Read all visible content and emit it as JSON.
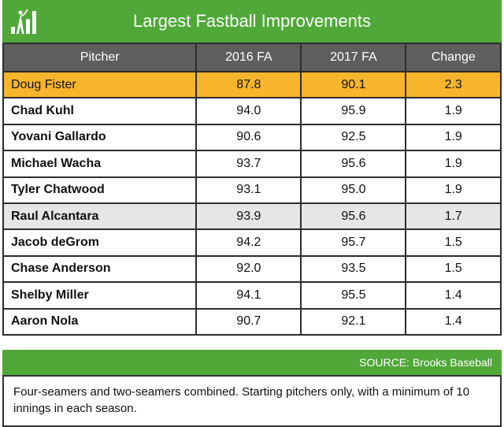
{
  "title": "Largest Fastball Improvements",
  "logo_icon": "batter-bar-chart-logo",
  "colors": {
    "brand_green": "#4fa838",
    "header_gray": "#5e5e5e",
    "highlight_gold": "#f7b52c",
    "highlight_gray": "#e6e6e6"
  },
  "columns": [
    "Pitcher",
    "2016 FA",
    "2017 FA",
    "Change"
  ],
  "rows": [
    {
      "pitcher": "Doug Fister",
      "fa2016": "87.8",
      "fa2017": "90.1",
      "change": "2.3"
    },
    {
      "pitcher": "Chad Kuhl",
      "fa2016": "94.0",
      "fa2017": "95.9",
      "change": "1.9"
    },
    {
      "pitcher": "Yovani Gallardo",
      "fa2016": "90.6",
      "fa2017": "92.5",
      "change": "1.9"
    },
    {
      "pitcher": "Michael Wacha",
      "fa2016": "93.7",
      "fa2017": "95.6",
      "change": "1.9"
    },
    {
      "pitcher": "Tyler Chatwood",
      "fa2016": "93.1",
      "fa2017": "95.0",
      "change": "1.9"
    },
    {
      "pitcher": "Raul Alcantara",
      "fa2016": "93.9",
      "fa2017": "95.6",
      "change": "1.7"
    },
    {
      "pitcher": "Jacob deGrom",
      "fa2016": "94.2",
      "fa2017": "95.7",
      "change": "1.5"
    },
    {
      "pitcher": "Chase Anderson",
      "fa2016": "92.0",
      "fa2017": "93.5",
      "change": "1.5"
    },
    {
      "pitcher": "Shelby Miller",
      "fa2016": "94.1",
      "fa2017": "95.5",
      "change": "1.4"
    },
    {
      "pitcher": "Aaron Nola",
      "fa2016": "90.7",
      "fa2017": "92.1",
      "change": "1.4"
    }
  ],
  "source": "SOURCE: Brooks Baseball",
  "note": "Four-seamers and two-seamers combined. Starting pitchers only, with a minimum of 10 innings in each season."
}
